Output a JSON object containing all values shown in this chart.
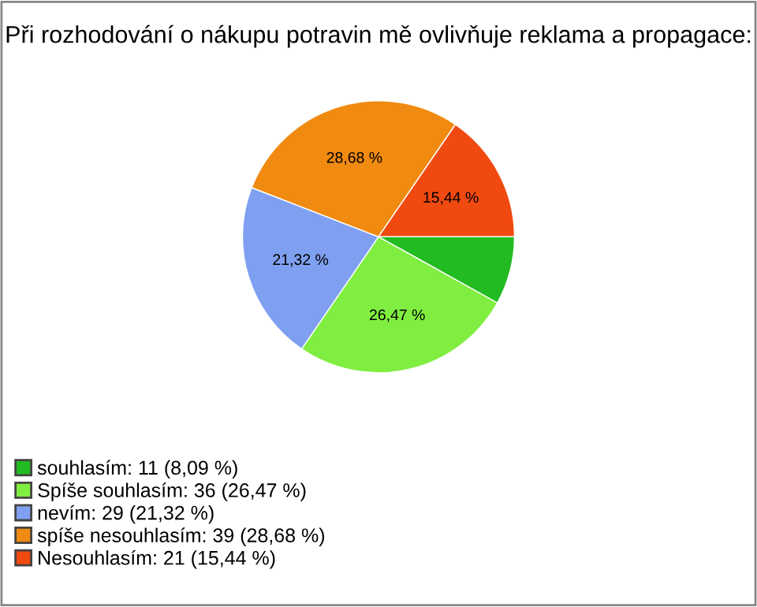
{
  "chart_data": {
    "type": "pie",
    "title": "Při rozhodování o nákupu potravin mě ovlivňuje reklama a propagace:",
    "categories": [
      "souhlasím: 11 (8,09 %)",
      "Spíše souhlasím: 36 (26,47 %)",
      "nevím: 29 (21,32 %)",
      "spíše nesouhlasím: 39 (28,68 %)",
      "Nesouhlasím: 21 (15,44 %)"
    ],
    "values": [
      8.09,
      26.47,
      21.32,
      28.68,
      15.44
    ],
    "colors": [
      "#22bb22",
      "#80ee40",
      "#7fa0f0",
      "#f08a10",
      "#f04a10"
    ],
    "value_labels": [
      null,
      "26,47 %",
      "21,32 %",
      "28,68 %",
      "15,44 %"
    ],
    "legend": "bottom left"
  }
}
